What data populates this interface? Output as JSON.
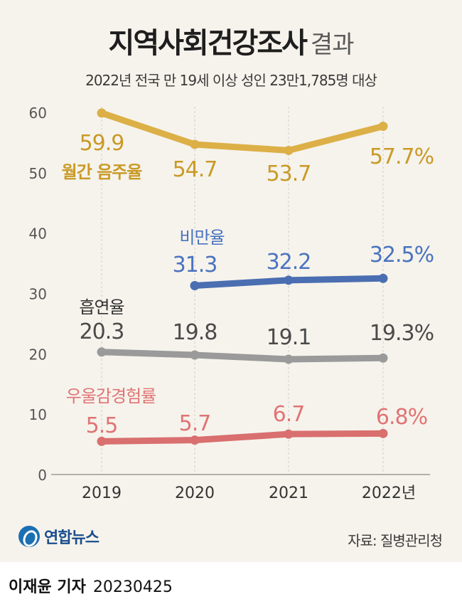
{
  "title": "지역사회건강조사",
  "title_suffix": "결과",
  "subtitle": "2022년 전국 만 19세 이상 성인 23만1,785명 대상",
  "source": "자료: 질병관리청",
  "logo_text": "연합뉴스",
  "byline_name": "이재윤 기자",
  "byline_date": "20230425",
  "chart_data": {
    "type": "line",
    "categories": [
      "2019",
      "2020",
      "2021",
      "2022년"
    ],
    "ylim": [
      0,
      60
    ],
    "yticks": [
      0,
      10,
      20,
      30,
      40,
      50,
      60
    ],
    "grid": "vertical dashed",
    "series": [
      {
        "name": "월간 음주율",
        "color": "#dcb047",
        "label_color": "#c99a26",
        "values": [
          59.9,
          54.7,
          53.7,
          57.7
        ],
        "labels": [
          "59.9",
          "54.7",
          "53.7",
          "57.7%"
        ]
      },
      {
        "name": "비만율",
        "color": "#4a6eb1",
        "label_color": "#4a73c0",
        "values": [
          null,
          31.3,
          32.2,
          32.5
        ],
        "labels": [
          "",
          "31.3",
          "32.2",
          "32.5%"
        ]
      },
      {
        "name": "흡연율",
        "color": "#9a9a9a",
        "label_color": "#4a4a4a",
        "values": [
          20.3,
          19.8,
          19.1,
          19.3
        ],
        "labels": [
          "20.3",
          "19.8",
          "19.1",
          "19.3%"
        ]
      },
      {
        "name": "우울감경험률",
        "color": "#d96f6f",
        "label_color": "#e07474",
        "values": [
          5.5,
          5.7,
          6.7,
          6.8
        ],
        "labels": [
          "5.5",
          "5.7",
          "6.7",
          "6.8%"
        ]
      }
    ]
  }
}
